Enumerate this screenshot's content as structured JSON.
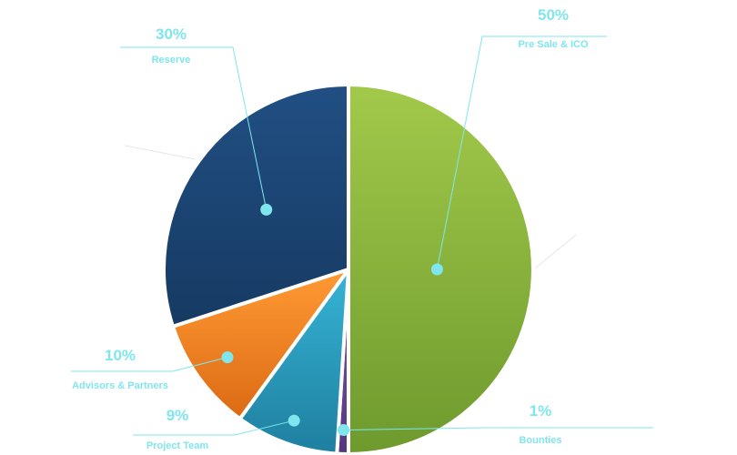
{
  "chart_data": {
    "type": "pie",
    "categories": [
      "Pre Sale & ICO",
      "Bounties",
      "Project Team",
      "Advisors & Partners",
      "Reserve"
    ],
    "values": [
      50,
      1,
      9,
      10,
      30
    ],
    "value_labels": [
      "50%",
      "1%",
      "9%",
      "10%",
      "30%"
    ],
    "colors": [
      "#8ab83e",
      "#6a4b9a",
      "#2c9fc0",
      "#f07e1e",
      "#1c4676"
    ],
    "annotation_color": "#7fe6ee",
    "legend": "none"
  }
}
